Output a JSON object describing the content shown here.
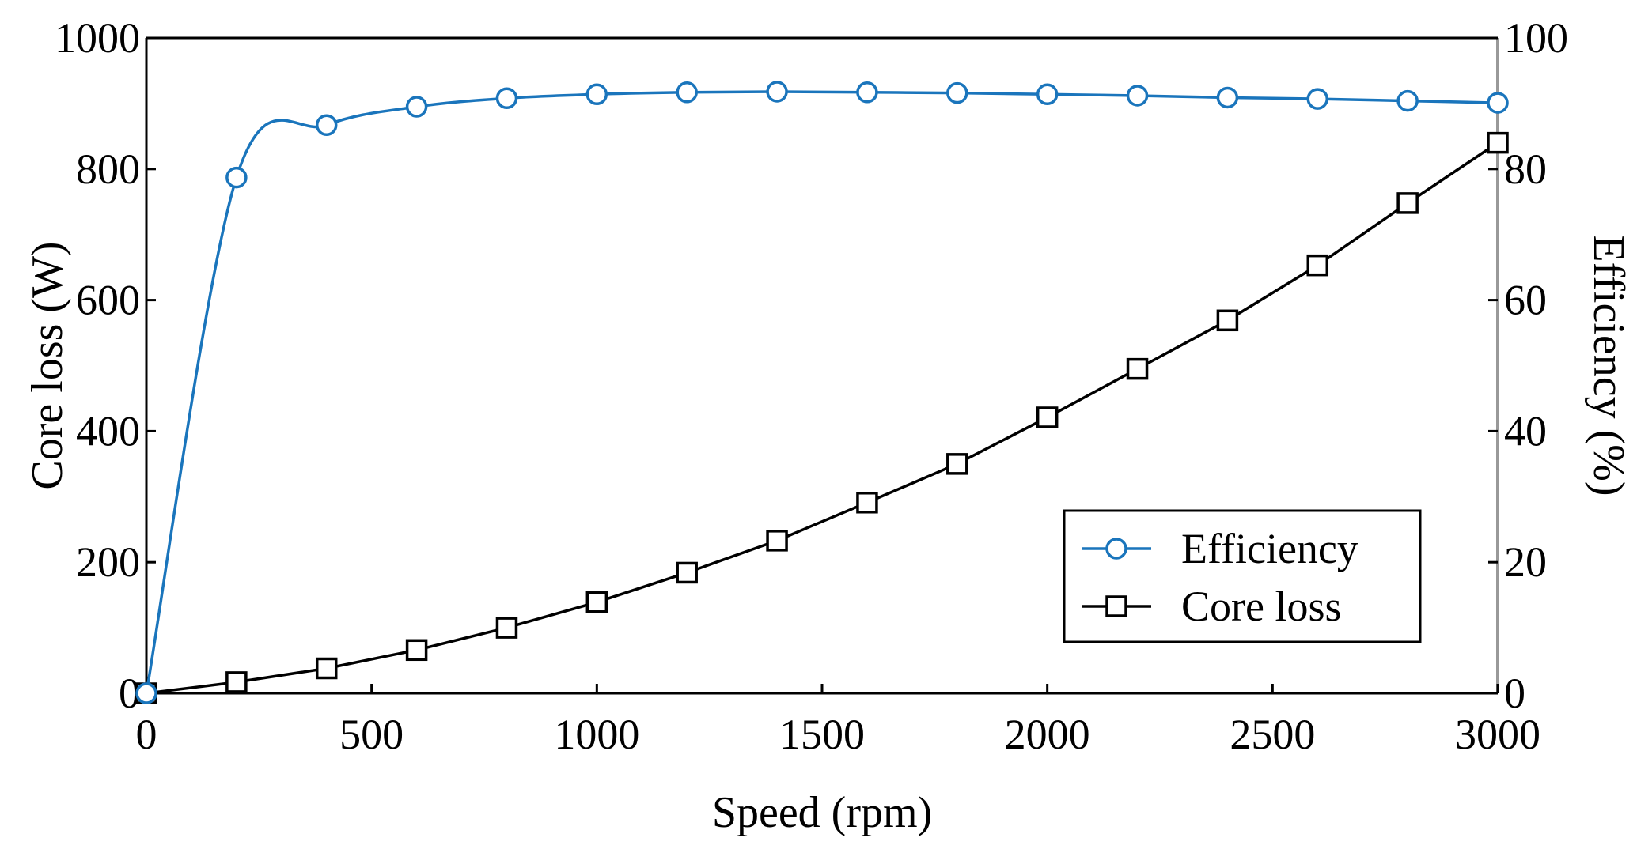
{
  "chart_data": {
    "type": "line",
    "x": [
      0,
      200,
      400,
      600,
      800,
      1000,
      1200,
      1400,
      1600,
      1800,
      2000,
      2200,
      2400,
      2600,
      2800,
      3000
    ],
    "series": [
      {
        "name": "Efficiency",
        "axis": "right",
        "marker": "circle",
        "color": "#1a75bc",
        "values": [
          0,
          78.7,
          86.7,
          89.5,
          90.8,
          91.4,
          91.7,
          91.8,
          91.7,
          91.6,
          91.4,
          91.2,
          90.9,
          90.7,
          90.4,
          90.1
        ]
      },
      {
        "name": "Core loss",
        "axis": "left",
        "marker": "square",
        "color": "#000000",
        "values": [
          0,
          17,
          38,
          66,
          100,
          139,
          184,
          233,
          291,
          350,
          421,
          495,
          569,
          653,
          748,
          840
        ]
      }
    ],
    "xlabel": "Speed (rpm)",
    "ylabel": "Core loss (W)",
    "y2label": "Efficiency (%)",
    "xlim": [
      0,
      3000
    ],
    "ylim": [
      0,
      1000
    ],
    "y2lim": [
      0,
      100
    ],
    "xticks": [
      0,
      500,
      1000,
      1500,
      2000,
      2500,
      3000
    ],
    "yticks": [
      0,
      200,
      400,
      600,
      800,
      1000
    ],
    "y2ticks": [
      0,
      20,
      40,
      60,
      80,
      100
    ],
    "grid": false,
    "legend_position": "lower-right"
  }
}
